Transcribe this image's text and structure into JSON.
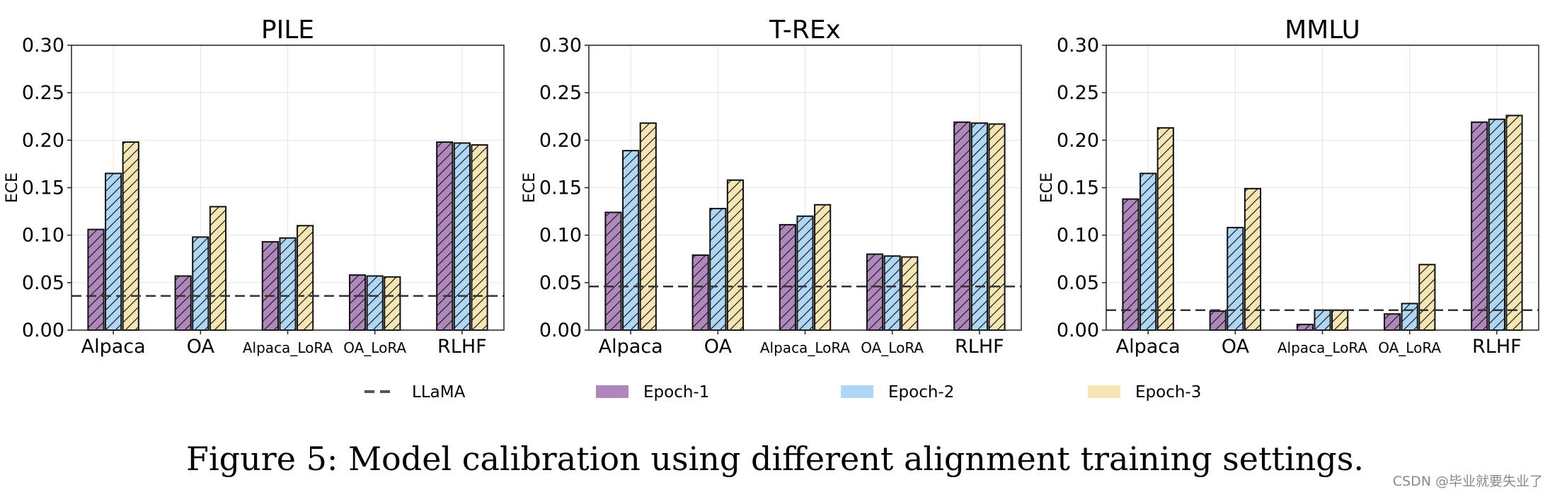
{
  "chart_data": [
    {
      "type": "bar",
      "title": "PILE",
      "ylabel": "ECE",
      "xlabel": "",
      "ylim": [
        0,
        0.3
      ],
      "yticks": [
        "0.00",
        "0.05",
        "0.10",
        "0.15",
        "0.20",
        "0.25",
        "0.30"
      ],
      "categories": [
        "Alpaca",
        "OA",
        "Alpaca_LoRA",
        "OA_LoRA",
        "RLHF"
      ],
      "baseline": 0.036,
      "series": [
        {
          "name": "Epoch-1",
          "values": [
            0.106,
            0.057,
            0.093,
            0.058,
            0.198
          ]
        },
        {
          "name": "Epoch-2",
          "values": [
            0.165,
            0.098,
            0.097,
            0.057,
            0.197
          ]
        },
        {
          "name": "Epoch-3",
          "values": [
            0.198,
            0.13,
            0.11,
            0.056,
            0.195
          ]
        }
      ],
      "grid": true
    },
    {
      "type": "bar",
      "title": "T-REx",
      "ylabel": "ECE",
      "xlabel": "",
      "ylim": [
        0,
        0.3
      ],
      "yticks": [
        "0.00",
        "0.05",
        "0.10",
        "0.15",
        "0.20",
        "0.25",
        "0.30"
      ],
      "categories": [
        "Alpaca",
        "OA",
        "Alpaca_LoRA",
        "OA_LoRA",
        "RLHF"
      ],
      "baseline": 0.046,
      "series": [
        {
          "name": "Epoch-1",
          "values": [
            0.124,
            0.079,
            0.111,
            0.08,
            0.219
          ]
        },
        {
          "name": "Epoch-2",
          "values": [
            0.189,
            0.128,
            0.12,
            0.078,
            0.218
          ]
        },
        {
          "name": "Epoch-3",
          "values": [
            0.218,
            0.158,
            0.132,
            0.077,
            0.217
          ]
        }
      ],
      "grid": true
    },
    {
      "type": "bar",
      "title": "MMLU",
      "ylabel": "ECE",
      "xlabel": "",
      "ylim": [
        0,
        0.3
      ],
      "yticks": [
        "0.00",
        "0.05",
        "0.10",
        "0.15",
        "0.20",
        "0.25",
        "0.30"
      ],
      "categories": [
        "Alpaca",
        "OA",
        "Alpaca_LoRA",
        "OA_LoRA",
        "RLHF"
      ],
      "baseline": 0.021,
      "series": [
        {
          "name": "Epoch-1",
          "values": [
            0.138,
            0.02,
            0.006,
            0.017,
            0.219
          ]
        },
        {
          "name": "Epoch-2",
          "values": [
            0.165,
            0.108,
            0.021,
            0.028,
            0.222
          ]
        },
        {
          "name": "Epoch-3",
          "values": [
            0.213,
            0.149,
            0.021,
            0.069,
            0.226
          ]
        }
      ],
      "grid": true
    }
  ],
  "legend": {
    "placement": "bottom",
    "items": [
      {
        "label": "LLaMA",
        "kind": "dashed-line",
        "color": "#555555"
      },
      {
        "label": "Epoch-1",
        "kind": "patch",
        "color": "#b087bd"
      },
      {
        "label": "Epoch-2",
        "kind": "patch",
        "color": "#aed6f5"
      },
      {
        "label": "Epoch-3",
        "kind": "patch",
        "color": "#f5e6b3"
      }
    ]
  },
  "colors": {
    "epoch1": "#b087bd",
    "epoch2": "#aed6f5",
    "epoch3": "#f5e6b3",
    "baseline": "#333333",
    "grid": "#e3e3e3"
  },
  "caption": "Figure 5: Model calibration using different alignment training settings.",
  "watermark": "CSDN @毕业就要失业了"
}
